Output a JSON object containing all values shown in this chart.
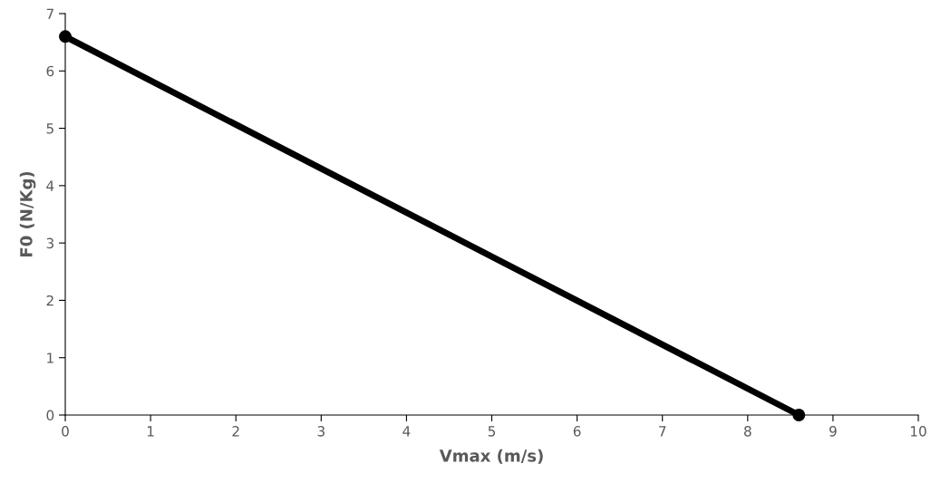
{
  "chart_data": {
    "type": "line",
    "xlabel": "Vmax (m/s)",
    "ylabel": "F0 (N/Kg)",
    "x": [
      0,
      8.6
    ],
    "series": [
      {
        "color": "#000000",
        "values": [
          6.6,
          0
        ]
      }
    ],
    "marker": "circle",
    "line_style": "solid",
    "xlim": [
      0,
      10
    ],
    "xticks": [
      0,
      1,
      2,
      3,
      4,
      5,
      6,
      7,
      8,
      9,
      10
    ],
    "ylim": [
      0,
      7
    ],
    "yticks": [
      0,
      1,
      2,
      3,
      4,
      5,
      6,
      7
    ],
    "grid": false
  }
}
